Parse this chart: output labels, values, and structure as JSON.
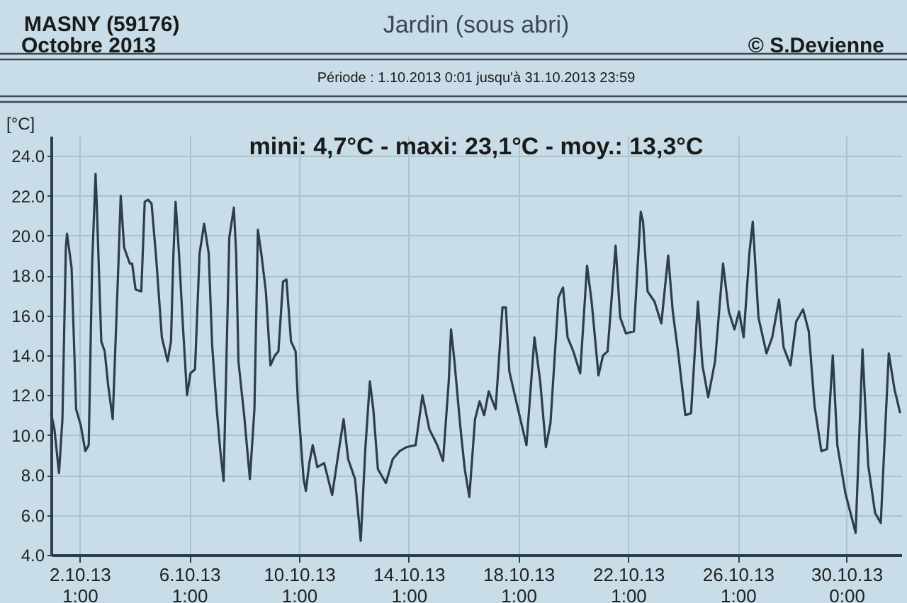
{
  "chart_data": {
    "type": "line",
    "title": "Jardin (sous abri)",
    "ylabel": "[°C]",
    "annotations": [
      "MASNY (59176)",
      "Octobre  2013",
      "© S.Devienne",
      "Période :  1.10.2013   0:01   jusqu'à  31.10.2013   23:59",
      "mini:  4,7°C - maxi: 23,1°C - moy.: 13,3°C"
    ],
    "xlim": [
      "2013-10-01T00:01",
      "2013-10-31T23:59"
    ],
    "xticks": [
      {
        "value": "2013-10-02T01:00",
        "label": "2.10.13\n1:00"
      },
      {
        "value": "2013-10-06T01:00",
        "label": "6.10.13\n1:00"
      },
      {
        "value": "2013-10-10T01:00",
        "label": "10.10.13\n1:00"
      },
      {
        "value": "2013-10-14T01:00",
        "label": "14.10.13\n1:00"
      },
      {
        "value": "2013-10-18T01:00",
        "label": "18.10.13\n1:00"
      },
      {
        "value": "2013-10-22T01:00",
        "label": "22.10.13\n1:00"
      },
      {
        "value": "2013-10-26T01:00",
        "label": "26.10.13\n1:00"
      },
      {
        "value": "2013-10-30T00:00",
        "label": "30.10.13\n0:00"
      }
    ],
    "ylim": [
      4,
      25
    ],
    "yticks": [
      {
        "value": 4,
        "label": "4.0"
      },
      {
        "value": 6,
        "label": "6.0"
      },
      {
        "value": 8,
        "label": "8.0"
      },
      {
        "value": 10,
        "label": "10.0"
      },
      {
        "value": 12,
        "label": "12.0"
      },
      {
        "value": 14,
        "label": "14.0"
      },
      {
        "value": 16,
        "label": "16.0"
      },
      {
        "value": 18,
        "label": "18.0"
      },
      {
        "value": 20,
        "label": "20.0"
      },
      {
        "value": 22,
        "label": "22.0"
      },
      {
        "value": 24,
        "label": "24.0"
      }
    ],
    "grid": true,
    "marker": "none",
    "line_style": "solid",
    "x": [
      "2013-10-01T00:01",
      "2013-10-01T03:00",
      "2013-10-01T07:00",
      "2013-10-01T10:00",
      "2013-10-01T13:00",
      "2013-10-01T14:00",
      "2013-10-01T18:00",
      "2013-10-01T22:00",
      "2013-10-02T02:00",
      "2013-10-02T06:00",
      "2013-10-02T09:00",
      "2013-10-02T12:00",
      "2013-10-02T15:00",
      "2013-10-02T16:00",
      "2013-10-02T20:00",
      "2013-10-02T23:00",
      "2013-10-03T02:00",
      "2013-10-03T06:00",
      "2013-10-03T11:00",
      "2013-10-03T13:00",
      "2013-10-03T16:00",
      "2013-10-03T21:00",
      "2013-10-03T23:00",
      "2013-10-04T02:00",
      "2013-10-04T07:00",
      "2013-10-04T10:00",
      "2013-10-04T13:00",
      "2013-10-04T16:00",
      "2013-10-04T20:00",
      "2013-10-05T01:00",
      "2013-10-05T06:00",
      "2013-10-05T09:00",
      "2013-10-05T11:00",
      "2013-10-05T13:00",
      "2013-10-05T16:00",
      "2013-10-05T19:00",
      "2013-10-05T23:00",
      "2013-10-06T02:00",
      "2013-10-06T06:00",
      "2013-10-06T10:00",
      "2013-10-06T14:00",
      "2013-10-06T18:00",
      "2013-10-06T21:00",
      "2013-10-07T01:00",
      "2013-10-07T04:00",
      "2013-10-07T07:00",
      "2013-10-07T12:00",
      "2013-10-07T16:00",
      "2013-10-07T18:00",
      "2013-10-07T20:00",
      "2013-10-08T01:00",
      "2013-10-08T06:00",
      "2013-10-08T10:00",
      "2013-10-08T13:00",
      "2013-10-08T16:00",
      "2013-10-08T20:00",
      "2013-10-09T00:00",
      "2013-10-09T04:00",
      "2013-10-09T07:00",
      "2013-10-09T11:00",
      "2013-10-09T14:00",
      "2013-10-09T18:00",
      "2013-10-09T22:00",
      "2013-10-10T00:00",
      "2013-10-10T05:00",
      "2013-10-10T07:00",
      "2013-10-10T10:00",
      "2013-10-10T13:00",
      "2013-10-10T17:00",
      "2013-10-10T23:00",
      "2013-10-11T06:00",
      "2013-10-11T12:00",
      "2013-10-11T16:00",
      "2013-10-11T20:00",
      "2013-10-12T02:00",
      "2013-10-12T07:00",
      "2013-10-12T11:00",
      "2013-10-12T15:00",
      "2013-10-12T18:00",
      "2013-10-12T22:00",
      "2013-10-13T05:00",
      "2013-10-13T11:00",
      "2013-10-13T17:00",
      "2013-10-13T23:00",
      "2013-10-14T07:00",
      "2013-10-14T13:00",
      "2013-10-14T19:00",
      "2013-10-15T02:00",
      "2013-10-15T07:00",
      "2013-10-15T12:00",
      "2013-10-15T14:00",
      "2013-10-15T17:00",
      "2013-10-15T22:00",
      "2013-10-16T02:00",
      "2013-10-16T06:00",
      "2013-10-16T11:00",
      "2013-10-16T15:00",
      "2013-10-16T19:00",
      "2013-10-16T23:00",
      "2013-10-17T05:00",
      "2013-10-17T11:00",
      "2013-10-17T14:00",
      "2013-10-17T17:00",
      "2013-10-17T23:00",
      "2013-10-18T08:00",
      "2013-10-18T15:00",
      "2013-10-18T20:00",
      "2013-10-19T01:00",
      "2013-10-19T05:00",
      "2013-10-19T12:00",
      "2013-10-19T16:00",
      "2013-10-19T20:00",
      "2013-10-20T01:00",
      "2013-10-20T07:00",
      "2013-10-20T13:00",
      "2013-10-20T17:00",
      "2013-10-20T23:00",
      "2013-10-21T03:00",
      "2013-10-21T07:00",
      "2013-10-21T14:00",
      "2013-10-21T18:00",
      "2013-10-21T23:00",
      "2013-10-22T06:00",
      "2013-10-22T12:00",
      "2013-10-22T14:00",
      "2013-10-22T18:00",
      "2013-10-23T00:00",
      "2013-10-23T06:00",
      "2013-10-23T12:00",
      "2013-10-23T16:00",
      "2013-10-23T21:00",
      "2013-10-24T03:00",
      "2013-10-24T08:00",
      "2013-10-24T14:00",
      "2013-10-24T18:00",
      "2013-10-24T23:00",
      "2013-10-25T05:00",
      "2013-10-25T12:00",
      "2013-10-25T17:00",
      "2013-10-25T22:00",
      "2013-10-26T02:00",
      "2013-10-26T06:00",
      "2013-10-26T11:00",
      "2013-10-26T14:00",
      "2013-10-26T19:00",
      "2013-10-27T02:00",
      "2013-10-27T07:00",
      "2013-10-27T13:00",
      "2013-10-27T17:00",
      "2013-10-27T23:00",
      "2013-10-28T04:00",
      "2013-10-28T10:00",
      "2013-10-28T15:00",
      "2013-10-28T20:00",
      "2013-10-29T02:00",
      "2013-10-29T07:00",
      "2013-10-29T12:00",
      "2013-10-29T16:00",
      "2013-10-29T23:00",
      "2013-10-30T08:00",
      "2013-10-30T14:00",
      "2013-10-30T19:00",
      "2013-10-31T01:00",
      "2013-10-31T06:00",
      "2013-10-31T13:00",
      "2013-10-31T18:00",
      "2013-10-31T23:00"
    ],
    "series": [
      {
        "color": "#2d3e48",
        "values": [
          11.1,
          10.3,
          8.1,
          10.8,
          19.4,
          20.1,
          18.4,
          11.3,
          10.5,
          9.2,
          9.5,
          18.6,
          23.1,
          21.6,
          14.7,
          14.2,
          12.5,
          10.8,
          18.6,
          22.0,
          19.4,
          18.6,
          18.6,
          17.3,
          17.2,
          21.7,
          21.8,
          21.6,
          18.9,
          14.9,
          13.7,
          14.7,
          18.9,
          21.7,
          19.1,
          15.9,
          12.0,
          13.1,
          13.3,
          19.1,
          20.6,
          19.1,
          14.5,
          11.3,
          9.3,
          7.7,
          19.9,
          21.4,
          19.1,
          13.7,
          11.0,
          7.8,
          11.3,
          20.3,
          19.1,
          17.2,
          13.5,
          14.0,
          14.2,
          17.7,
          17.8,
          14.7,
          14.2,
          11.7,
          7.8,
          7.2,
          8.6,
          9.5,
          8.4,
          8.6,
          7.0,
          9.3,
          10.8,
          8.8,
          7.8,
          4.7,
          9.3,
          12.7,
          11.3,
          8.3,
          7.6,
          8.8,
          9.2,
          9.4,
          9.5,
          12.0,
          10.3,
          9.5,
          8.7,
          12.7,
          15.3,
          13.7,
          10.5,
          8.3,
          6.9,
          10.8,
          11.7,
          11.0,
          12.2,
          11.3,
          16.4,
          16.4,
          13.2,
          11.7,
          9.5,
          14.9,
          12.7,
          9.4,
          10.6,
          16.9,
          17.4,
          14.9,
          14.2,
          13.1,
          18.5,
          16.7,
          13.0,
          14.0,
          14.2,
          19.5,
          15.9,
          15.1,
          15.2,
          21.2,
          20.7,
          17.2,
          16.7,
          15.6,
          19.0,
          16.2,
          14.0,
          11.0,
          11.1,
          16.7,
          13.5,
          11.9,
          13.7,
          18.6,
          16.2,
          15.3,
          16.2,
          14.9,
          19.1,
          20.7,
          15.9,
          14.1,
          14.9,
          16.8,
          14.4,
          13.5,
          15.7,
          16.3,
          15.2,
          11.5,
          9.2,
          9.3,
          14.0,
          9.5,
          7.1,
          5.1,
          14.3,
          8.5,
          6.1,
          5.6,
          14.1,
          12.3,
          11.1
        ]
      }
    ]
  }
}
